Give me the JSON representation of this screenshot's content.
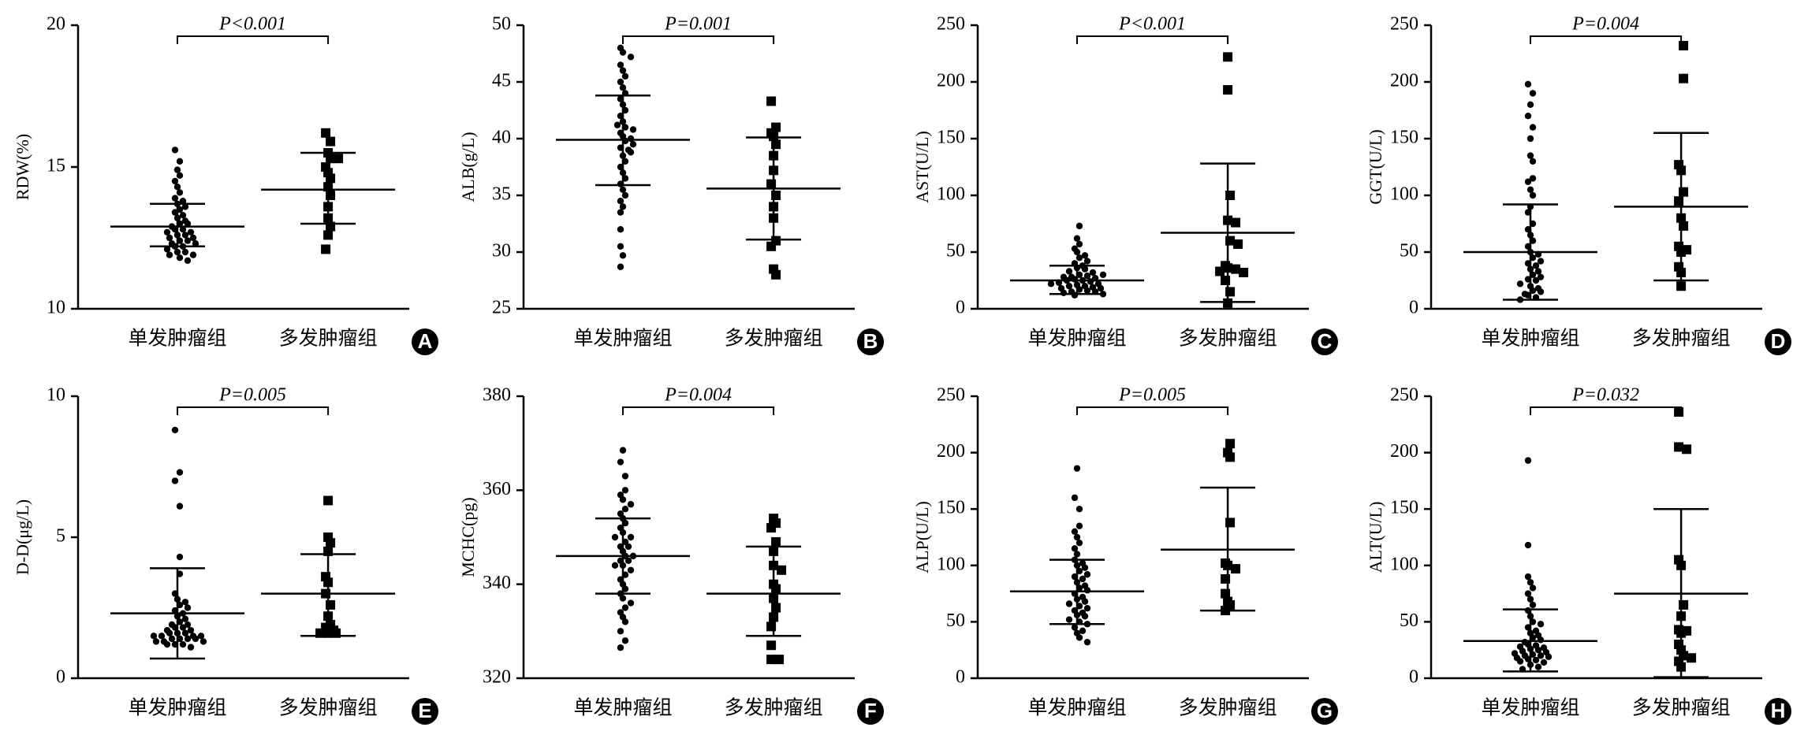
{
  "chart_data": [
    {
      "type": "dotplot",
      "panel": "A",
      "y_label": "RDW(%)",
      "p_value": "P<0.001",
      "ylim": [
        10,
        20
      ],
      "yticks": [
        10,
        15,
        20
      ],
      "series": [
        {
          "name": "单发肿瘤组",
          "marker": "circle",
          "color": "#000000",
          "mean": 12.9,
          "sd_upper": 13.7,
          "sd_lower": 12.2,
          "values": [
            15.6,
            15.2,
            14.9,
            14.7,
            14.5,
            14.3,
            14.1,
            13.9,
            13.8,
            13.7,
            13.6,
            13.5,
            13.4,
            13.3,
            13.2,
            13.1,
            13.0,
            13.0,
            12.9,
            12.8,
            12.8,
            12.7,
            12.6,
            12.6,
            12.5,
            12.4,
            12.4,
            12.3,
            12.3,
            12.2,
            12.2,
            12.1,
            12.0,
            12.0,
            11.9,
            11.9,
            11.8,
            11.7,
            12.5,
            12.7
          ]
        },
        {
          "name": "多发肿瘤组",
          "marker": "square",
          "color": "#000000",
          "mean": 14.2,
          "sd_upper": 15.5,
          "sd_lower": 13.0,
          "values": [
            16.2,
            15.9,
            15.5,
            15.3,
            15.3,
            15.0,
            14.8,
            14.6,
            14.3,
            14.0,
            13.6,
            13.2,
            12.6,
            12.1,
            12.9
          ]
        }
      ]
    },
    {
      "type": "dotplot",
      "panel": "B",
      "y_label": "ALB(g/L)",
      "p_value": "P=0.001",
      "ylim": [
        25,
        50
      ],
      "yticks": [
        25,
        30,
        35,
        40,
        45,
        50
      ],
      "series": [
        {
          "name": "单发肿瘤组",
          "marker": "circle",
          "color": "#000000",
          "mean": 39.9,
          "sd_upper": 43.8,
          "sd_lower": 35.9,
          "values": [
            48.0,
            47.6,
            47.2,
            46.5,
            46.0,
            45.5,
            45.0,
            44.5,
            44.0,
            43.5,
            43.0,
            42.5,
            42.0,
            41.5,
            41.0,
            40.8,
            40.5,
            40.2,
            40.0,
            39.8,
            39.5,
            39.2,
            39.0,
            38.5,
            38.0,
            37.5,
            37.0,
            36.5,
            36.0,
            35.5,
            35.0,
            34.5,
            34.0,
            33.5,
            32.0,
            30.5,
            29.7,
            28.7,
            41.2,
            38.8
          ]
        },
        {
          "name": "多发肿瘤组",
          "marker": "square",
          "color": "#000000",
          "mean": 35.6,
          "sd_upper": 40.1,
          "sd_lower": 31.1,
          "values": [
            43.3,
            41.0,
            40.5,
            40.2,
            39.5,
            38.5,
            37.2,
            36.0,
            35.0,
            34.0,
            33.0,
            31.0,
            30.5,
            28.5,
            28.0
          ]
        }
      ]
    },
    {
      "type": "dotplot",
      "panel": "C",
      "y_label": "AST(U/L)",
      "p_value": "P<0.001",
      "ylim": [
        0,
        250
      ],
      "yticks": [
        0,
        50,
        100,
        150,
        200,
        250
      ],
      "series": [
        {
          "name": "单发肿瘤组",
          "marker": "circle",
          "color": "#000000",
          "mean": 25,
          "sd_upper": 38,
          "sd_lower": 13,
          "values": [
            73,
            62,
            57,
            53,
            50,
            47,
            45,
            42,
            40,
            38,
            36,
            35,
            33,
            32,
            30,
            29,
            28,
            27,
            26,
            25,
            25,
            24,
            23,
            22,
            22,
            21,
            20,
            20,
            19,
            18,
            18,
            17,
            16,
            15,
            15,
            14,
            13,
            12,
            28,
            30
          ]
        },
        {
          "name": "多发肿瘤组",
          "marker": "square",
          "color": "#000000",
          "mean": 67,
          "sd_upper": 128,
          "sd_lower": 6,
          "values": [
            222,
            193,
            100,
            78,
            76,
            60,
            57,
            38,
            36,
            35,
            33,
            32,
            25,
            15,
            5
          ]
        }
      ]
    },
    {
      "type": "dotplot",
      "panel": "D",
      "y_label": "GGT(U/L)",
      "p_value": "P=0.004",
      "ylim": [
        0,
        250
      ],
      "yticks": [
        0,
        50,
        100,
        150,
        200,
        250
      ],
      "series": [
        {
          "name": "单发肿瘤组",
          "marker": "circle",
          "color": "#000000",
          "mean": 50,
          "sd_upper": 92,
          "sd_lower": 8,
          "values": [
            198,
            190,
            180,
            170,
            160,
            150,
            135,
            130,
            115,
            112,
            105,
            100,
            90,
            85,
            75,
            70,
            65,
            60,
            55,
            50,
            48,
            45,
            42,
            40,
            38,
            35,
            33,
            30,
            28,
            26,
            25,
            22,
            20,
            18,
            16,
            15,
            13,
            12,
            10,
            8
          ]
        },
        {
          "name": "多发肿瘤组",
          "marker": "square",
          "color": "#000000",
          "mean": 90,
          "sd_upper": 155,
          "sd_lower": 25,
          "values": [
            232,
            203,
            127,
            122,
            103,
            95,
            80,
            73,
            55,
            52,
            50,
            37,
            32,
            20
          ]
        }
      ]
    },
    {
      "type": "dotplot",
      "panel": "E",
      "y_label": "D-D(μg/L)",
      "p_value": "P=0.005",
      "ylim": [
        0,
        10
      ],
      "yticks": [
        0,
        5,
        10
      ],
      "series": [
        {
          "name": "单发肿瘤组",
          "marker": "circle",
          "color": "#000000",
          "mean": 2.3,
          "sd_upper": 3.9,
          "sd_lower": 0.7,
          "values": [
            8.8,
            7.3,
            7.0,
            6.1,
            4.3,
            3.7,
            3.0,
            2.8,
            2.7,
            2.6,
            2.5,
            2.4,
            2.3,
            2.2,
            2.1,
            2.0,
            1.9,
            1.8,
            1.8,
            1.7,
            1.7,
            1.6,
            1.6,
            1.6,
            1.5,
            1.5,
            1.5,
            1.5,
            1.4,
            1.4,
            1.4,
            1.4,
            1.3,
            1.3,
            1.3,
            1.2,
            1.2,
            1.2,
            1.1,
            1.9
          ]
        },
        {
          "name": "多发肿瘤组",
          "marker": "square",
          "color": "#000000",
          "mean": 3.0,
          "sd_upper": 4.4,
          "sd_lower": 1.5,
          "values": [
            6.3,
            5.0,
            4.8,
            4.5,
            3.6,
            3.4,
            3.0,
            2.6,
            2.2,
            1.9,
            1.8,
            1.7,
            1.6,
            1.6,
            1.6
          ]
        }
      ]
    },
    {
      "type": "dotplot",
      "panel": "F",
      "y_label": "MCHC(pg)",
      "p_value": "P=0.004",
      "ylim": [
        320,
        380
      ],
      "yticks": [
        320,
        340,
        360,
        380
      ],
      "series": [
        {
          "name": "单发肿瘤组",
          "marker": "circle",
          "color": "#000000",
          "mean": 346,
          "sd_upper": 354,
          "sd_lower": 338,
          "values": [
            368.5,
            366,
            363,
            360,
            359,
            358,
            357,
            356,
            355,
            354,
            353,
            352,
            351,
            350,
            349,
            348,
            347,
            346,
            346,
            345,
            345,
            344,
            343,
            342,
            341,
            340,
            339,
            338,
            337,
            336,
            335,
            334,
            333,
            332,
            330,
            328,
            326.5,
            348,
            344,
            350
          ]
        },
        {
          "name": "多发肿瘤组",
          "marker": "square",
          "color": "#000000",
          "mean": 338,
          "sd_upper": 348,
          "sd_lower": 329,
          "values": [
            354,
            353,
            352,
            349,
            347,
            344,
            343,
            340,
            339,
            337,
            335,
            333,
            331,
            327,
            324,
            324
          ]
        }
      ]
    },
    {
      "type": "dotplot",
      "panel": "G",
      "y_label": "ALP(U/L)",
      "p_value": "P=0.005",
      "ylim": [
        0,
        250
      ],
      "yticks": [
        0,
        50,
        100,
        150,
        200,
        250
      ],
      "series": [
        {
          "name": "单发肿瘤组",
          "marker": "circle",
          "color": "#000000",
          "mean": 77,
          "sd_upper": 105,
          "sd_lower": 48,
          "values": [
            186,
            160,
            150,
            135,
            130,
            125,
            120,
            115,
            110,
            105,
            102,
            100,
            98,
            95,
            92,
            90,
            88,
            85,
            82,
            80,
            78,
            75,
            72,
            70,
            68,
            66,
            64,
            62,
            60,
            58,
            56,
            55,
            52,
            50,
            48,
            45,
            42,
            40,
            36,
            32
          ]
        },
        {
          "name": "多发肿瘤组",
          "marker": "square",
          "color": "#000000",
          "mean": 114,
          "sd_upper": 169,
          "sd_lower": 60,
          "values": [
            208,
            200,
            196,
            138,
            102,
            100,
            97,
            88,
            75,
            68,
            65,
            60
          ]
        }
      ]
    },
    {
      "type": "dotplot",
      "panel": "H",
      "y_label": "ALT(U/L)",
      "p_value": "P=0.032",
      "ylim": [
        0,
        250
      ],
      "yticks": [
        0,
        50,
        100,
        150,
        200,
        250
      ],
      "series": [
        {
          "name": "单发肿瘤组",
          "marker": "circle",
          "color": "#000000",
          "mean": 33,
          "sd_upper": 61,
          "sd_lower": 6,
          "values": [
            193,
            118,
            90,
            85,
            80,
            75,
            70,
            65,
            60,
            55,
            50,
            48,
            45,
            42,
            40,
            38,
            36,
            34,
            32,
            30,
            29,
            28,
            27,
            26,
            25,
            24,
            23,
            22,
            21,
            20,
            20,
            19,
            18,
            17,
            16,
            15,
            14,
            12,
            10,
            8
          ]
        },
        {
          "name": "多发肿瘤组",
          "marker": "square",
          "color": "#000000",
          "mean": 75,
          "sd_upper": 150,
          "sd_lower": 1,
          "values": [
            236,
            205,
            203,
            105,
            100,
            65,
            55,
            43,
            42,
            40,
            30,
            25,
            20,
            18,
            15,
            10
          ]
        }
      ]
    }
  ]
}
